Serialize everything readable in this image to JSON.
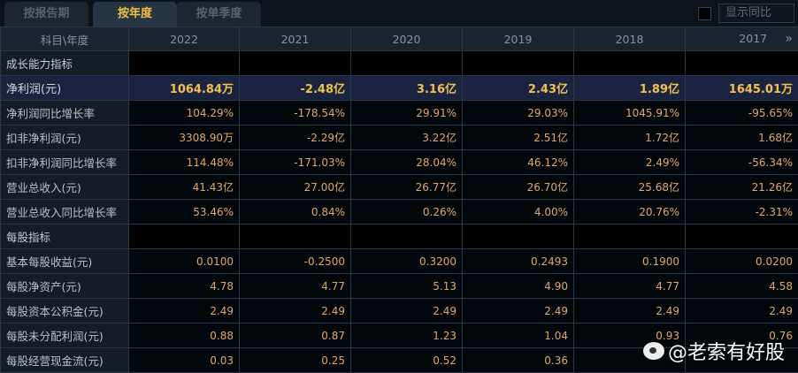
{
  "tabs": [
    "按报告期",
    "按年度",
    "按单季度"
  ],
  "active_tab": 1,
  "show_yoy_label": "显示同比",
  "header": {
    "label": "科目\\年度",
    "years": [
      "2022",
      "2021",
      "2020",
      "2019",
      "2018",
      "2017"
    ]
  },
  "sections": [
    {
      "title": "成长能力指标",
      "rows": [
        {
          "label": "净利润(元)",
          "highlight": true,
          "values": [
            "1064.84万",
            "-2.48亿",
            "3.16亿",
            "2.43亿",
            "1.89亿",
            "1645.01万"
          ]
        },
        {
          "label": "净利润同比增长率",
          "values": [
            "104.29%",
            "-178.54%",
            "29.91%",
            "29.03%",
            "1045.91%",
            "-95.65%"
          ]
        },
        {
          "label": "扣非净利润(元)",
          "values": [
            "3308.90万",
            "-2.29亿",
            "3.22亿",
            "2.51亿",
            "1.72亿",
            "1.68亿"
          ]
        },
        {
          "label": "扣非净利润同比增长率",
          "values": [
            "114.48%",
            "-171.03%",
            "28.04%",
            "46.12%",
            "2.49%",
            "-56.34%"
          ]
        },
        {
          "label": "营业总收入(元)",
          "values": [
            "41.43亿",
            "27.00亿",
            "26.77亿",
            "26.70亿",
            "25.68亿",
            "21.26亿"
          ]
        },
        {
          "label": "营业总收入同比增长率",
          "values": [
            "53.46%",
            "0.84%",
            "0.26%",
            "4.00%",
            "20.76%",
            "-2.31%"
          ]
        }
      ]
    },
    {
      "title": "每股指标",
      "rows": [
        {
          "label": "基本每股收益(元)",
          "values": [
            "0.0100",
            "-0.2500",
            "0.3200",
            "0.2493",
            "0.1900",
            "0.0200"
          ]
        },
        {
          "label": "每股净资产(元)",
          "values": [
            "4.78",
            "4.77",
            "5.13",
            "4.90",
            "4.77",
            "4.58"
          ]
        },
        {
          "label": "每股资本公积金(元)",
          "values": [
            "2.49",
            "2.49",
            "2.49",
            "2.49",
            "2.49",
            "2.49"
          ]
        },
        {
          "label": "每股未分配利润(元)",
          "values": [
            "0.88",
            "0.87",
            "1.23",
            "1.04",
            "0.93",
            "0.76"
          ]
        },
        {
          "label": "每股经营现金流(元)",
          "values": [
            "0.03",
            "0.25",
            "0.52",
            "0.36",
            "",
            ""
          ]
        }
      ]
    }
  ],
  "watermark": "@老索有好股"
}
